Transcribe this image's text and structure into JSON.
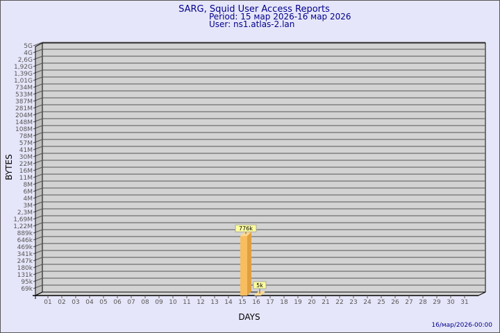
{
  "header": {
    "title": "SARG, Squid User Access Reports",
    "period": "Period: 15 мар 2026-16 мар 2026",
    "user": "User: ns1.atlas-2.lan"
  },
  "footer": {
    "timestamp": "16/мар/2026-00:00"
  },
  "colors": {
    "background": "#e6e6fa",
    "plot": "#d3d3d3",
    "bar": "#f8bd5e",
    "bar_side": "#e0a040",
    "label_box": "#ffffa0",
    "title": "#00008b"
  },
  "chart_data": {
    "type": "bar",
    "xlabel": "DAYS",
    "ylabel": "BYTES",
    "y_scale": "log",
    "grid": true,
    "y_ticks": [
      "5G",
      "4G",
      "2,6G",
      "1,92G",
      "1,39G",
      "1,01G",
      "734M",
      "533M",
      "387M",
      "281M",
      "204M",
      "148M",
      "108M",
      "78M",
      "57M",
      "41M",
      "30M",
      "22M",
      "16M",
      "11M",
      "8M",
      "6M",
      "4M",
      "3M",
      "2,3M",
      "1,69M",
      "1,22M",
      "889k",
      "646k",
      "469k",
      "341k",
      "247k",
      "180k",
      "131k",
      "95k",
      "69k"
    ],
    "categories": [
      "01",
      "02",
      "03",
      "04",
      "05",
      "06",
      "07",
      "08",
      "09",
      "10",
      "11",
      "12",
      "13",
      "14",
      "15",
      "16",
      "17",
      "18",
      "19",
      "20",
      "21",
      "22",
      "23",
      "24",
      "25",
      "26",
      "27",
      "28",
      "29",
      "30",
      "31"
    ],
    "bars": [
      {
        "day": "15",
        "value": 776000,
        "label": "776k"
      },
      {
        "day": "16",
        "value": 5000,
        "label": "5k"
      }
    ]
  }
}
